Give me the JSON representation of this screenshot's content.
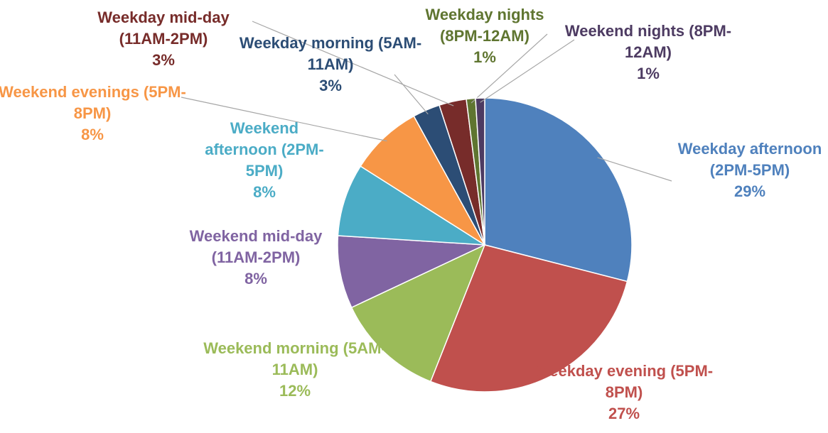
{
  "chart_data": {
    "type": "pie",
    "labels": [
      "Weekday afternoon (2PM-5PM)",
      "Weekday evening (5PM-8PM)",
      "Weekend morning (5AM-11AM)",
      "Weekend mid-day (11AM-2PM)",
      "Weekend afternoon (2PM-5PM)",
      "Weekend evenings (5PM-8PM)",
      "Weekday morning (5AM-11AM)",
      "Weekday mid-day (11AM-2PM)",
      "Weekday nights (8PM-12AM)",
      "Weekend nights (8PM-12AM)"
    ],
    "values": [
      29,
      27,
      12,
      8,
      8,
      8,
      3,
      3,
      1,
      1
    ],
    "value_labels": [
      "29%",
      "27%",
      "12%",
      "8%",
      "8%",
      "8%",
      "3%",
      "3%",
      "1%",
      "1%"
    ],
    "colors": [
      "#4f81bd",
      "#c0504d",
      "#9bbb59",
      "#8064a2",
      "#4bacc6",
      "#f79646",
      "#2c4d75",
      "#772c2a",
      "#5f7530",
      "#4d3b62"
    ]
  }
}
